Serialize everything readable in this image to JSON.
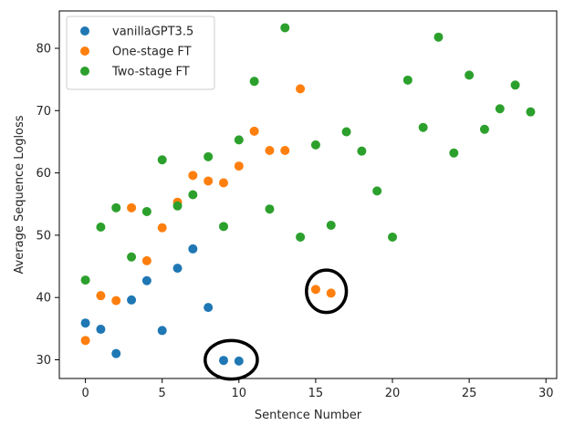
{
  "chart_data": {
    "type": "scatter",
    "title": "",
    "xlabel": "Sentence Number",
    "ylabel": "Average Sequence Logloss",
    "xlim": [
      -1.7,
      30.7
    ],
    "ylim": [
      27,
      86
    ],
    "xticks": [
      0,
      5,
      10,
      15,
      20,
      25,
      30
    ],
    "yticks": [
      30,
      40,
      50,
      60,
      70,
      80
    ],
    "grid": false,
    "legend_position": "upper-left",
    "series": [
      {
        "name": "vanillaGPT3.5",
        "color": "#1f77b4",
        "points": [
          [
            0,
            35.9
          ],
          [
            1,
            34.9
          ],
          [
            2,
            31.0
          ],
          [
            3,
            39.6
          ],
          [
            4,
            42.7
          ],
          [
            5,
            34.7
          ],
          [
            6,
            44.7
          ],
          [
            7,
            47.8
          ],
          [
            8,
            38.4
          ],
          [
            9,
            29.9
          ],
          [
            10,
            29.8
          ]
        ]
      },
      {
        "name": "One-stage FT",
        "color": "#ff7f0e",
        "points": [
          [
            0,
            33.1
          ],
          [
            1,
            40.3
          ],
          [
            2,
            39.5
          ],
          [
            3,
            54.4
          ],
          [
            4,
            45.9
          ],
          [
            5,
            51.2
          ],
          [
            6,
            55.3
          ],
          [
            7,
            59.6
          ],
          [
            8,
            58.7
          ],
          [
            9,
            58.4
          ],
          [
            10,
            61.1
          ],
          [
            11,
            66.7
          ],
          [
            12,
            63.6
          ],
          [
            13,
            63.6
          ],
          [
            14,
            73.5
          ],
          [
            15,
            41.3
          ],
          [
            16,
            40.7
          ]
        ]
      },
      {
        "name": "Two-stage FT",
        "color": "#2ca02c",
        "points": [
          [
            0,
            42.8
          ],
          [
            1,
            51.3
          ],
          [
            2,
            54.4
          ],
          [
            3,
            46.5
          ],
          [
            4,
            53.8
          ],
          [
            5,
            62.1
          ],
          [
            6,
            54.7
          ],
          [
            7,
            56.5
          ],
          [
            8,
            62.6
          ],
          [
            9,
            51.4
          ],
          [
            10,
            65.3
          ],
          [
            11,
            74.7
          ],
          [
            12,
            54.2
          ],
          [
            13,
            83.3
          ],
          [
            14,
            49.7
          ],
          [
            15,
            64.5
          ],
          [
            16,
            51.6
          ],
          [
            17,
            66.6
          ],
          [
            18,
            63.5
          ],
          [
            19,
            57.1
          ],
          [
            20,
            49.7
          ],
          [
            21,
            74.9
          ],
          [
            22,
            67.3
          ],
          [
            23,
            81.8
          ],
          [
            24,
            63.2
          ],
          [
            25,
            75.7
          ],
          [
            26,
            67.0
          ],
          [
            27,
            70.3
          ],
          [
            28,
            74.1
          ],
          [
            29,
            69.8
          ]
        ]
      }
    ],
    "annotations": [
      {
        "type": "ellipse",
        "center": [
          9.5,
          30.0
        ],
        "rx_data": 1.7,
        "ry_data": 3.1
      },
      {
        "type": "ellipse",
        "center": [
          15.7,
          41.0
        ],
        "rx_data": 1.3,
        "ry_data": 3.4
      }
    ]
  }
}
